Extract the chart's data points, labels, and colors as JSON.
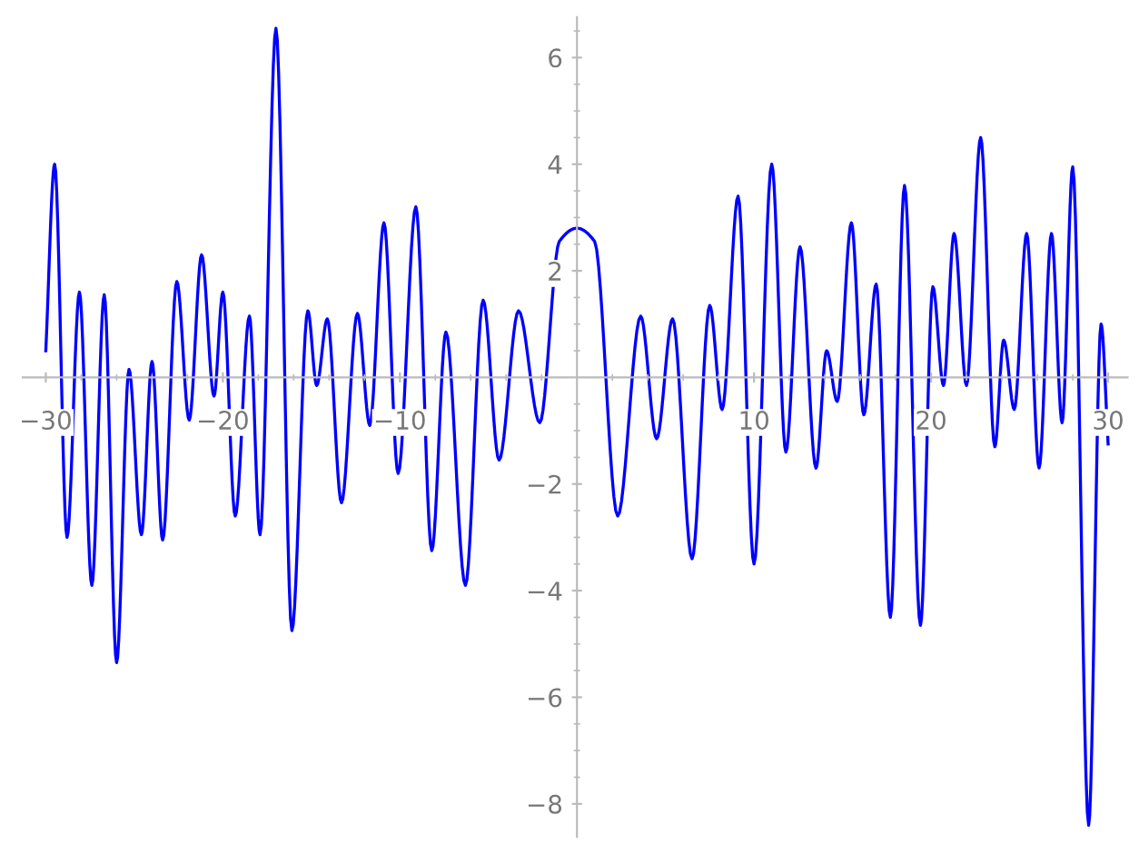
{
  "chart_data": {
    "type": "line",
    "x": [
      -30,
      -29.5,
      -28.8,
      -28.1,
      -27.4,
      -26.7,
      -26.0,
      -25.3,
      -24.6,
      -24.0,
      -23.4,
      -22.6,
      -21.9,
      -21.2,
      -20.5,
      -20.0,
      -19.3,
      -18.5,
      -17.9,
      -17.0,
      -16.1,
      -15.2,
      -14.7,
      -14.1,
      -13.3,
      -12.4,
      -11.7,
      -10.9,
      -10.1,
      -9.1,
      -8.2,
      -7.4,
      -6.3,
      -5.3,
      -4.4,
      -3.3,
      -2.1,
      -1.0,
      0,
      1.0,
      2.3,
      3.6,
      4.5,
      5.4,
      6.5,
      7.5,
      8.2,
      9.1,
      10.0,
      11.0,
      11.8,
      12.6,
      13.5,
      14.1,
      14.7,
      15.5,
      16.2,
      16.9,
      17.7,
      18.5,
      19.4,
      20.1,
      20.7,
      21.3,
      22.0,
      22.8,
      23.6,
      24.1,
      24.7,
      25.4,
      26.1,
      26.8,
      27.4,
      28.0,
      28.9,
      29.6,
      30
    ],
    "series": [
      {
        "color": "#0000ff",
        "values": [
          0.5,
          4.0,
          -3.0,
          1.6,
          -3.9,
          1.55,
          -5.35,
          0.15,
          -2.95,
          0.3,
          -3.05,
          1.8,
          -0.8,
          2.3,
          -0.35,
          1.6,
          -2.6,
          1.15,
          -2.95,
          6.55,
          -4.75,
          1.25,
          -0.15,
          1.1,
          -2.35,
          1.2,
          -0.9,
          2.9,
          -1.8,
          3.2,
          -3.25,
          0.85,
          -3.9,
          1.45,
          -1.55,
          1.25,
          -0.85,
          2.55,
          2.8,
          2.55,
          -2.6,
          1.15,
          -1.15,
          1.1,
          -3.4,
          1.35,
          -0.6,
          3.4,
          -3.5,
          4.0,
          -1.4,
          2.45,
          -1.7,
          0.5,
          -0.45,
          2.9,
          -0.7,
          1.75,
          -4.5,
          3.6,
          -4.65,
          1.7,
          -0.15,
          2.7,
          -0.15,
          4.5,
          -1.3,
          0.7,
          -0.6,
          2.7,
          -1.7,
          2.7,
          -0.85,
          3.95,
          -8.4,
          1.0,
          -1.25
        ]
      }
    ],
    "xlim": [
      -31.3,
      31.1
    ],
    "ylim": [
      -8.62,
      6.76
    ],
    "xticks": [
      {
        "value": -30,
        "label": "−30"
      },
      {
        "value": -28,
        "label": null
      },
      {
        "value": -26,
        "label": null
      },
      {
        "value": -24,
        "label": null
      },
      {
        "value": -22,
        "label": null
      },
      {
        "value": -20,
        "label": "−20"
      },
      {
        "value": -18,
        "label": null
      },
      {
        "value": -16,
        "label": null
      },
      {
        "value": -14,
        "label": null
      },
      {
        "value": -12,
        "label": null
      },
      {
        "value": -10,
        "label": "−10"
      },
      {
        "value": -8,
        "label": null
      },
      {
        "value": -6,
        "label": null
      },
      {
        "value": -4,
        "label": null
      },
      {
        "value": -2,
        "label": null
      },
      {
        "value": 2,
        "label": null
      },
      {
        "value": 4,
        "label": null
      },
      {
        "value": 6,
        "label": null
      },
      {
        "value": 8,
        "label": null
      },
      {
        "value": 10,
        "label": "10"
      },
      {
        "value": 12,
        "label": null
      },
      {
        "value": 14,
        "label": null
      },
      {
        "value": 16,
        "label": null
      },
      {
        "value": 18,
        "label": null
      },
      {
        "value": 20,
        "label": "20"
      },
      {
        "value": 22,
        "label": null
      },
      {
        "value": 24,
        "label": null
      },
      {
        "value": 26,
        "label": null
      },
      {
        "value": 28,
        "label": null
      },
      {
        "value": 30,
        "label": "30"
      }
    ],
    "yticks": [
      {
        "value": -8,
        "label": "−8"
      },
      {
        "value": -7.5,
        "label": null
      },
      {
        "value": -7,
        "label": null
      },
      {
        "value": -6.5,
        "label": null
      },
      {
        "value": -6,
        "label": "−6"
      },
      {
        "value": -5.5,
        "label": null
      },
      {
        "value": -5,
        "label": null
      },
      {
        "value": -4.5,
        "label": null
      },
      {
        "value": -4,
        "label": "−4"
      },
      {
        "value": -3.5,
        "label": null
      },
      {
        "value": -3,
        "label": null
      },
      {
        "value": -2.5,
        "label": null
      },
      {
        "value": -2,
        "label": "−2"
      },
      {
        "value": -1.5,
        "label": null
      },
      {
        "value": -1,
        "label": null
      },
      {
        "value": -0.5,
        "label": null
      },
      {
        "value": 0.5,
        "label": null
      },
      {
        "value": 1,
        "label": null
      },
      {
        "value": 1.5,
        "label": null
      },
      {
        "value": 2,
        "label": "2"
      },
      {
        "value": 2.5,
        "label": null
      },
      {
        "value": 3,
        "label": null
      },
      {
        "value": 3.5,
        "label": null
      },
      {
        "value": 4,
        "label": "4"
      },
      {
        "value": 4.5,
        "label": null
      },
      {
        "value": 5,
        "label": null
      },
      {
        "value": 5.5,
        "label": null
      },
      {
        "value": 6,
        "label": "6"
      },
      {
        "value": 6.5,
        "label": null
      }
    ],
    "grid": false,
    "legend": false,
    "marker": "none",
    "line_style": "solid"
  }
}
